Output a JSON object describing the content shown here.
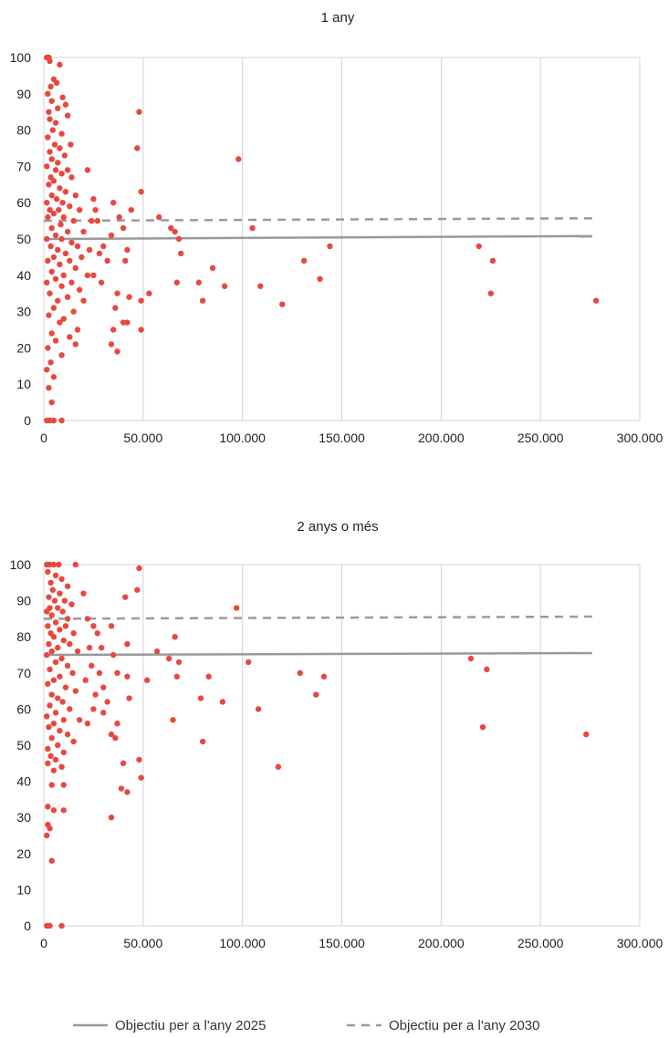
{
  "colors": {
    "points": "#e8483f",
    "target_2025": "#9a9a9a",
    "target_2030": "#9a9a9a",
    "grid": "#d4d4d4",
    "background": "#ffffff"
  },
  "legend": {
    "placement": "bottom",
    "target_2025_label": "Objectiu per a l'any 2025",
    "target_2030_label": "Objectiu per a l'any 2030"
  },
  "chart_data": [
    {
      "type": "scatter",
      "title": "1 any",
      "xlabel": "",
      "ylabel": "",
      "xlim": [
        0,
        300000
      ],
      "ylim": [
        0,
        100
      ],
      "grid": true,
      "x_tick_labels": [
        "0",
        "50.000",
        "100.000",
        "150.000",
        "200.000",
        "250.000",
        "300.000"
      ],
      "y_tick_labels": [
        "0",
        "10",
        "20",
        "30",
        "40",
        "50",
        "60",
        "70",
        "80",
        "90",
        "100"
      ],
      "target_lines": [
        {
          "name": "Objectiu per a l'any 2025",
          "style": "solid",
          "x": [
            0,
            276000
          ],
          "y": [
            50,
            50.8
          ]
        },
        {
          "name": "Objectiu per a l'any 2030",
          "style": "dashed",
          "x": [
            0,
            276000
          ],
          "y": [
            55,
            55.7
          ]
        }
      ],
      "points": [
        [
          1500,
          100
        ],
        [
          2500,
          100
        ],
        [
          3000,
          99
        ],
        [
          8000,
          98
        ],
        [
          5000,
          94
        ],
        [
          3500,
          92
        ],
        [
          2000,
          90
        ],
        [
          6500,
          93
        ],
        [
          4000,
          88
        ],
        [
          9500,
          89
        ],
        [
          11000,
          87
        ],
        [
          2500,
          85
        ],
        [
          7000,
          86
        ],
        [
          3000,
          83
        ],
        [
          6000,
          82
        ],
        [
          12000,
          84
        ],
        [
          4500,
          80
        ],
        [
          9000,
          79
        ],
        [
          2000,
          78
        ],
        [
          13500,
          76
        ],
        [
          5500,
          76
        ],
        [
          8000,
          75
        ],
        [
          3000,
          74
        ],
        [
          10500,
          73
        ],
        [
          4000,
          72
        ],
        [
          7000,
          71
        ],
        [
          1500,
          70
        ],
        [
          6000,
          69
        ],
        [
          12000,
          69
        ],
        [
          9000,
          68
        ],
        [
          3500,
          67
        ],
        [
          5000,
          66
        ],
        [
          14000,
          67
        ],
        [
          2500,
          65
        ],
        [
          8000,
          64
        ],
        [
          11000,
          63
        ],
        [
          4000,
          62
        ],
        [
          16000,
          62
        ],
        [
          6500,
          61
        ],
        [
          1500,
          60
        ],
        [
          9500,
          60
        ],
        [
          13000,
          59
        ],
        [
          3000,
          58
        ],
        [
          7500,
          58
        ],
        [
          18000,
          58
        ],
        [
          5000,
          57
        ],
        [
          10000,
          56
        ],
        [
          2000,
          56
        ],
        [
          15000,
          55
        ],
        [
          8500,
          54
        ],
        [
          4000,
          53
        ],
        [
          12000,
          52
        ],
        [
          20000,
          52
        ],
        [
          6000,
          51
        ],
        [
          1500,
          50
        ],
        [
          9000,
          50
        ],
        [
          14000,
          49
        ],
        [
          3500,
          48
        ],
        [
          17000,
          48
        ],
        [
          7000,
          47
        ],
        [
          11000,
          46
        ],
        [
          5000,
          45
        ],
        [
          19000,
          45
        ],
        [
          2000,
          44
        ],
        [
          13000,
          44
        ],
        [
          8000,
          43
        ],
        [
          16000,
          42
        ],
        [
          4000,
          41
        ],
        [
          10000,
          40
        ],
        [
          22000,
          40
        ],
        [
          6000,
          39
        ],
        [
          1500,
          38
        ],
        [
          14000,
          38
        ],
        [
          9000,
          37
        ],
        [
          18000,
          36
        ],
        [
          3000,
          35
        ],
        [
          12000,
          34
        ],
        [
          7000,
          33
        ],
        [
          20000,
          33
        ],
        [
          5000,
          31
        ],
        [
          15000,
          30
        ],
        [
          2500,
          29
        ],
        [
          10000,
          28
        ],
        [
          8000,
          27
        ],
        [
          17000,
          25
        ],
        [
          4000,
          24
        ],
        [
          13000,
          23
        ],
        [
          6000,
          22
        ],
        [
          16000,
          21
        ],
        [
          2000,
          20
        ],
        [
          9000,
          18
        ],
        [
          3500,
          16
        ],
        [
          1500,
          14
        ],
        [
          5000,
          12
        ],
        [
          2500,
          9
        ],
        [
          4000,
          5
        ],
        [
          1500,
          0
        ],
        [
          3000,
          0
        ],
        [
          5000,
          0
        ],
        [
          9000,
          0
        ],
        [
          22000,
          69
        ],
        [
          25000,
          61
        ],
        [
          26000,
          58
        ],
        [
          24000,
          55
        ],
        [
          27000,
          55
        ],
        [
          23000,
          47
        ],
        [
          28000,
          46
        ],
        [
          30000,
          48
        ],
        [
          25000,
          40
        ],
        [
          32000,
          44
        ],
        [
          29000,
          38
        ],
        [
          34000,
          51
        ],
        [
          35000,
          60
        ],
        [
          36000,
          31
        ],
        [
          38000,
          56
        ],
        [
          40000,
          53
        ],
        [
          37000,
          35
        ],
        [
          42000,
          47
        ],
        [
          41000,
          44
        ],
        [
          43000,
          34
        ],
        [
          42000,
          27
        ],
        [
          44000,
          58
        ],
        [
          47000,
          75
        ],
        [
          48000,
          85
        ],
        [
          49000,
          63
        ],
        [
          49000,
          33
        ],
        [
          49000,
          25
        ],
        [
          53000,
          35
        ],
        [
          58000,
          56
        ],
        [
          37000,
          19
        ],
        [
          34000,
          21
        ],
        [
          35000,
          25
        ],
        [
          40000,
          27
        ],
        [
          64000,
          53
        ],
        [
          66000,
          52
        ],
        [
          68000,
          50
        ],
        [
          69000,
          46
        ],
        [
          67000,
          38
        ],
        [
          78000,
          38
        ],
        [
          80000,
          33
        ],
        [
          85000,
          42
        ],
        [
          91000,
          37
        ],
        [
          98000,
          72
        ],
        [
          105000,
          53
        ],
        [
          109000,
          37
        ],
        [
          120000,
          32
        ],
        [
          131000,
          44
        ],
        [
          139000,
          39
        ],
        [
          144000,
          48
        ],
        [
          219000,
          48
        ],
        [
          226000,
          44
        ],
        [
          225000,
          35
        ],
        [
          278000,
          33
        ]
      ]
    },
    {
      "type": "scatter",
      "title": "2 anys o més",
      "xlabel": "",
      "ylabel": "",
      "xlim": [
        0,
        300000
      ],
      "ylim": [
        0,
        100
      ],
      "grid": true,
      "x_tick_labels": [
        "0",
        "50.000",
        "100.000",
        "150.000",
        "200.000",
        "250.000",
        "300.000"
      ],
      "y_tick_labels": [
        "0",
        "10",
        "20",
        "30",
        "40",
        "50",
        "60",
        "70",
        "80",
        "90",
        "100"
      ],
      "target_lines": [
        {
          "name": "Objectiu per a l'any 2025",
          "style": "solid",
          "x": [
            0,
            276000
          ],
          "y": [
            75,
            75.5
          ]
        },
        {
          "name": "Objectiu per a l'any 2030",
          "style": "dashed",
          "x": [
            0,
            276000
          ],
          "y": [
            85,
            85.6
          ]
        }
      ],
      "points": [
        [
          1500,
          100
        ],
        [
          3000,
          100
        ],
        [
          5000,
          100
        ],
        [
          7500,
          100
        ],
        [
          16000,
          100
        ],
        [
          2000,
          98
        ],
        [
          6000,
          97
        ],
        [
          9000,
          96
        ],
        [
          3500,
          95
        ],
        [
          12000,
          94
        ],
        [
          4500,
          93
        ],
        [
          8000,
          92
        ],
        [
          2500,
          91
        ],
        [
          10500,
          90
        ],
        [
          5500,
          90
        ],
        [
          14000,
          89
        ],
        [
          3000,
          88
        ],
        [
          7000,
          88
        ],
        [
          1500,
          87
        ],
        [
          9500,
          87
        ],
        [
          4000,
          86
        ],
        [
          12000,
          85
        ],
        [
          6000,
          84
        ],
        [
          2000,
          83
        ],
        [
          11000,
          83
        ],
        [
          8000,
          82
        ],
        [
          3500,
          81
        ],
        [
          15000,
          81
        ],
        [
          5000,
          80
        ],
        [
          10000,
          79
        ],
        [
          2500,
          78
        ],
        [
          13000,
          78
        ],
        [
          7000,
          77
        ],
        [
          4000,
          76
        ],
        [
          17000,
          76
        ],
        [
          1500,
          75
        ],
        [
          9000,
          74
        ],
        [
          6000,
          73
        ],
        [
          12000,
          72
        ],
        [
          3000,
          71
        ],
        [
          14500,
          70
        ],
        [
          8000,
          69
        ],
        [
          5000,
          68
        ],
        [
          2000,
          67
        ],
        [
          11000,
          66
        ],
        [
          16000,
          65
        ],
        [
          4000,
          64
        ],
        [
          7000,
          63
        ],
        [
          9500,
          62
        ],
        [
          3000,
          61
        ],
        [
          13000,
          60
        ],
        [
          6000,
          59
        ],
        [
          1500,
          58
        ],
        [
          10000,
          57
        ],
        [
          18000,
          57
        ],
        [
          5000,
          56
        ],
        [
          2500,
          55
        ],
        [
          8000,
          54
        ],
        [
          12000,
          53
        ],
        [
          4000,
          52
        ],
        [
          15000,
          51
        ],
        [
          7000,
          50
        ],
        [
          2000,
          49
        ],
        [
          10000,
          48
        ],
        [
          3500,
          47
        ],
        [
          6000,
          46
        ],
        [
          2000,
          45
        ],
        [
          9000,
          44
        ],
        [
          5000,
          43
        ],
        [
          4000,
          39
        ],
        [
          10000,
          39
        ],
        [
          2000,
          33
        ],
        [
          5000,
          32
        ],
        [
          10000,
          32
        ],
        [
          2000,
          28
        ],
        [
          3000,
          27
        ],
        [
          1500,
          25
        ],
        [
          4000,
          18
        ],
        [
          1500,
          0
        ],
        [
          3000,
          0
        ],
        [
          9000,
          0
        ],
        [
          20000,
          92
        ],
        [
          22000,
          85
        ],
        [
          25000,
          83
        ],
        [
          27000,
          81
        ],
        [
          23000,
          77
        ],
        [
          29000,
          77
        ],
        [
          24000,
          72
        ],
        [
          28000,
          70
        ],
        [
          21000,
          68
        ],
        [
          30000,
          66
        ],
        [
          26000,
          64
        ],
        [
          32000,
          62
        ],
        [
          25000,
          60
        ],
        [
          22000,
          56
        ],
        [
          34000,
          83
        ],
        [
          35000,
          75
        ],
        [
          30000,
          59
        ],
        [
          37000,
          70
        ],
        [
          34000,
          53
        ],
        [
          36000,
          52
        ],
        [
          41000,
          91
        ],
        [
          42000,
          78
        ],
        [
          42000,
          69
        ],
        [
          43000,
          63
        ],
        [
          40000,
          45
        ],
        [
          39000,
          38
        ],
        [
          42000,
          37
        ],
        [
          47000,
          93
        ],
        [
          48000,
          99
        ],
        [
          48000,
          46
        ],
        [
          49000,
          41
        ],
        [
          37000,
          56
        ],
        [
          34000,
          30
        ],
        [
          52000,
          68
        ],
        [
          57000,
          76
        ],
        [
          63000,
          74
        ],
        [
          66000,
          80
        ],
        [
          68000,
          73
        ],
        [
          67000,
          69
        ],
        [
          65000,
          57
        ],
        [
          79000,
          63
        ],
        [
          80000,
          51
        ],
        [
          83000,
          69
        ],
        [
          90000,
          62
        ],
        [
          97000,
          88
        ],
        [
          103000,
          73
        ],
        [
          108000,
          60
        ],
        [
          118000,
          44
        ],
        [
          129000,
          70
        ],
        [
          137000,
          64
        ],
        [
          141000,
          69
        ],
        [
          215000,
          74
        ],
        [
          223000,
          71
        ],
        [
          221000,
          55
        ],
        [
          273000,
          53
        ]
      ]
    }
  ]
}
